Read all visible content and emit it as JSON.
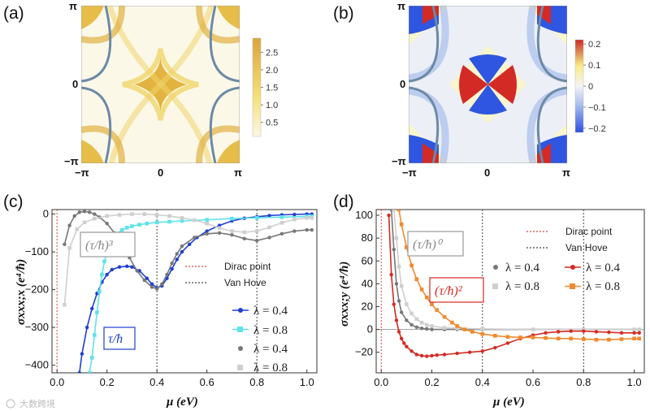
{
  "panels": {
    "a": {
      "letter": "(a)",
      "x_ticks": [
        "−π",
        "0",
        "π"
      ],
      "y_ticks": [
        "π",
        "0",
        "−π"
      ],
      "colorbar_ticks": [
        "2.5",
        "2.0",
        "1.5",
        "1.0",
        "0.5"
      ],
      "colorbar_values": [
        2.5,
        2.0,
        1.5,
        1.0,
        0.5
      ],
      "colorbar_range": [
        0.1,
        2.9
      ]
    },
    "b": {
      "letter": "(b)",
      "x_ticks": [
        "−π",
        "0",
        "π"
      ],
      "y_ticks": [
        "π",
        "0",
        "−π"
      ],
      "colorbar_ticks": [
        "0.2",
        "0.1",
        "0",
        "−0.1",
        "−0.2"
      ],
      "colorbar_values": [
        0.2,
        0.1,
        0,
        -0.1,
        -0.2
      ],
      "colorbar_range": [
        -0.22,
        0.22
      ]
    },
    "c": {
      "letter": "(c)",
      "ylabel": "σxxx;x (e⁴/ħ)",
      "xlabel": "μ (eV)",
      "legend_lines": [
        "Dirac point",
        "Van Hove"
      ],
      "legend_series": [
        "λ = 0.4",
        "λ = 0.8",
        "λ = 0.4",
        "λ = 0.8"
      ],
      "box_cubic": "(τ/ħ)³",
      "box_linear": "τ/ħ"
    },
    "d": {
      "letter": "(d)",
      "ylabel": "σxxx;y (e⁴/ħ)",
      "xlabel": "μ (eV)",
      "legend_lines": [
        "Dirac point",
        "Van Hove"
      ],
      "legend_series": [
        "λ = 0.4",
        "λ = 0.8",
        "λ = 0.4",
        "λ = 0.8"
      ],
      "box_zero": "(τ/ħ)⁰",
      "box_square": "(τ/ħ)²"
    }
  },
  "watermark": "大数跨境",
  "colors": {
    "blue": "#1f3fd1",
    "cyan": "#5fe3ea",
    "gray": "#777777",
    "lightgray": "#cfcfcf",
    "red": "#d42a22",
    "orange": "#ef8a2e",
    "dirac": "#e04040",
    "vanhove": "#444444"
  },
  "chart_data": [
    {
      "type": "line",
      "title": "(c)",
      "xlabel": "μ (eV)",
      "ylabel": "σxxx;x (e⁴/ħ)",
      "xlim": [
        -0.02,
        1.04
      ],
      "ylim": [
        -420,
        12
      ],
      "x_ticks": [
        0.0,
        0.2,
        0.4,
        0.6,
        0.8,
        1.0
      ],
      "x_tick_labels": [
        "0.0",
        "0.2",
        "0.4",
        "0.6",
        "0.8",
        "1.0"
      ],
      "y_ticks": [
        0,
        -100,
        -200,
        -300,
        -400
      ],
      "y_tick_labels": [
        "0",
        "−100",
        "−200",
        "−300",
        "−400"
      ],
      "vlines": [
        {
          "x": 0.0,
          "label": "Dirac point"
        },
        {
          "x": 0.4,
          "label": "Van Hove"
        },
        {
          "x": 0.8,
          "label": "Van Hove"
        }
      ],
      "series": [
        {
          "name": "λ = 0.4 (τ/ħ)",
          "color": "#1f3fd1",
          "x": [
            0.09,
            0.1,
            0.12,
            0.14,
            0.16,
            0.18,
            0.2,
            0.22,
            0.25,
            0.28,
            0.3,
            0.33,
            0.36,
            0.38,
            0.4,
            0.42,
            0.44,
            0.46,
            0.48,
            0.5,
            0.53,
            0.56,
            0.6,
            0.65,
            0.7,
            0.75,
            0.8,
            0.85,
            0.9,
            0.95,
            1.0,
            1.02
          ],
          "y": [
            -420,
            -370,
            -300,
            -250,
            -210,
            -180,
            -160,
            -147,
            -140,
            -138,
            -140,
            -150,
            -170,
            -185,
            -195,
            -190,
            -170,
            -145,
            -120,
            -100,
            -80,
            -62,
            -45,
            -30,
            -18,
            -11,
            -7,
            -4,
            -2,
            -1,
            0,
            0
          ]
        },
        {
          "name": "λ = 0.8 (τ/ħ)",
          "color": "#5fe3ea",
          "x": [
            0.13,
            0.14,
            0.15,
            0.16,
            0.17,
            0.18,
            0.19,
            0.2,
            0.22,
            0.24,
            0.26,
            0.28,
            0.3,
            0.33,
            0.36,
            0.4,
            0.45,
            0.5,
            0.6,
            0.7,
            0.8,
            0.9,
            1.0,
            1.02
          ],
          "y": [
            -420,
            -380,
            -320,
            -260,
            -205,
            -160,
            -125,
            -100,
            -70,
            -52,
            -42,
            -36,
            -32,
            -28,
            -25,
            -22,
            -20,
            -18,
            -15,
            -12,
            -10,
            -8,
            -6,
            -6
          ]
        },
        {
          "name": "λ = 0.4 ((τ/ħ)³)",
          "color": "#777777",
          "x": [
            0.03,
            0.05,
            0.07,
            0.09,
            0.11,
            0.13,
            0.15,
            0.17,
            0.2,
            0.23,
            0.26,
            0.29,
            0.32,
            0.35,
            0.38,
            0.4,
            0.42,
            0.44,
            0.46,
            0.48,
            0.5,
            0.55,
            0.6,
            0.65,
            0.7,
            0.75,
            0.8,
            0.85,
            0.9,
            0.95,
            1.0,
            1.02
          ],
          "y": [
            -80,
            -30,
            -5,
            5,
            7,
            5,
            0,
            -8,
            -25,
            -50,
            -80,
            -115,
            -150,
            -175,
            -193,
            -198,
            -185,
            -160,
            -130,
            -105,
            -85,
            -62,
            -52,
            -50,
            -55,
            -65,
            -70,
            -62,
            -52,
            -45,
            -42,
            -42
          ]
        },
        {
          "name": "λ = 0.8 ((τ/ħ)³)",
          "color": "#cfcfcf",
          "x": [
            0.03,
            0.05,
            0.08,
            0.11,
            0.15,
            0.2,
            0.25,
            0.3,
            0.35,
            0.4,
            0.45,
            0.5,
            0.55,
            0.6,
            0.65,
            0.7,
            0.75,
            0.8,
            0.85,
            0.9,
            0.95,
            1.0,
            1.02
          ],
          "y": [
            -240,
            -90,
            -40,
            -22,
            -12,
            -5,
            -2,
            0,
            0,
            -2,
            -5,
            -10,
            -16,
            -25,
            -37,
            -45,
            -48,
            -45,
            -35,
            -23,
            -14,
            -10,
            -10
          ]
        }
      ]
    },
    {
      "type": "line",
      "title": "(d)",
      "xlabel": "μ (eV)",
      "ylabel": "σxxx;y (e⁴/ħ)",
      "xlim": [
        -0.02,
        1.04
      ],
      "ylim": [
        -38,
        105
      ],
      "x_ticks": [
        0.0,
        0.2,
        0.4,
        0.6,
        0.8,
        1.0
      ],
      "x_tick_labels": [
        "0.0",
        "0.2",
        "0.4",
        "0.6",
        "0.8",
        "1.0"
      ],
      "y_ticks": [
        100,
        80,
        60,
        40,
        20,
        0,
        -20
      ],
      "y_tick_labels": [
        "100",
        "80",
        "60",
        "40",
        "20",
        "0",
        "−20"
      ],
      "vlines": [
        {
          "x": 0.0,
          "label": "Dirac point"
        },
        {
          "x": 0.4,
          "label": "Van Hove"
        },
        {
          "x": 0.8,
          "label": "Van Hove"
        }
      ],
      "series": [
        {
          "name": "λ = 0.4 ((τ/ħ)⁰)",
          "color": "#777777",
          "x": [
            0.04,
            0.05,
            0.06,
            0.07,
            0.08,
            0.1,
            0.12,
            0.14,
            0.16,
            0.18,
            0.2,
            0.25,
            0.3,
            0.4,
            0.6,
            0.8,
            1.0,
            1.02
          ],
          "y": [
            105,
            70,
            40,
            25,
            15,
            8,
            4,
            2,
            1,
            0.5,
            0,
            0,
            0,
            0,
            0,
            0,
            0,
            0
          ]
        },
        {
          "name": "λ = 0.8 ((τ/ħ)⁰)",
          "color": "#cfcfcf",
          "x": [
            0.05,
            0.06,
            0.07,
            0.08,
            0.1,
            0.12,
            0.14,
            0.16,
            0.18,
            0.2,
            0.25,
            0.3,
            0.4,
            0.6,
            0.8,
            1.0,
            1.02
          ],
          "y": [
            105,
            80,
            55,
            38,
            22,
            14,
            9,
            6,
            4,
            3,
            1.5,
            1,
            0.5,
            0,
            0,
            0,
            0
          ]
        },
        {
          "name": "λ = 0.4 ((τ/ħ)²)",
          "color": "#d42a22",
          "x": [
            0.03,
            0.04,
            0.05,
            0.06,
            0.07,
            0.08,
            0.09,
            0.1,
            0.12,
            0.14,
            0.16,
            0.18,
            0.2,
            0.22,
            0.25,
            0.3,
            0.35,
            0.4,
            0.45,
            0.5,
            0.55,
            0.6,
            0.65,
            0.7,
            0.75,
            0.8,
            0.85,
            0.9,
            0.95,
            1.0,
            1.02
          ],
          "y": [
            100,
            48,
            22,
            8,
            -2,
            -8,
            -12,
            -15,
            -19,
            -22,
            -23,
            -23.5,
            -23,
            -22.5,
            -22,
            -21,
            -20,
            -19,
            -16,
            -12,
            -8,
            -5,
            -3,
            -2,
            -1.5,
            -1.5,
            -2,
            -2.5,
            -3,
            -3,
            -3
          ]
        },
        {
          "name": "λ = 0.8 ((τ/ħ)²)",
          "color": "#ef8a2e",
          "x": [
            0.07,
            0.08,
            0.1,
            0.12,
            0.14,
            0.16,
            0.18,
            0.2,
            0.22,
            0.25,
            0.28,
            0.3,
            0.33,
            0.36,
            0.4,
            0.45,
            0.5,
            0.55,
            0.6,
            0.65,
            0.7,
            0.75,
            0.8,
            0.85,
            0.9,
            0.95,
            1.0,
            1.02
          ],
          "y": [
            105,
            92,
            72,
            56,
            44,
            35,
            28,
            22,
            17,
            11,
            6,
            3,
            0,
            -2,
            -4,
            -5.5,
            -6.5,
            -7,
            -7,
            -7.5,
            -8,
            -8,
            -8.5,
            -9,
            -9,
            -8.5,
            -8,
            -8
          ]
        }
      ]
    }
  ]
}
